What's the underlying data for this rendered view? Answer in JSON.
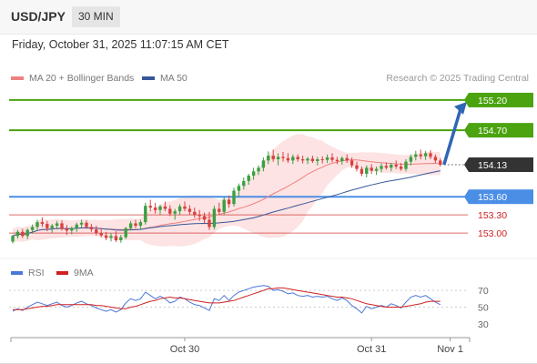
{
  "header": {
    "symbol": "USD/JPY",
    "timeframe": "30 MIN"
  },
  "datetime": "Friday, October 31, 2025 11:07:15 AM CET",
  "legend": {
    "ma_bb_label": "MA 20 + Bollinger Bands",
    "ma50_label": "MA 50",
    "copyright": "Research © 2025 Trading Central"
  },
  "colors": {
    "resistance": "#4aa30f",
    "support": "#4a8ee6",
    "target_low": "#cc2222",
    "bullish": "#3aa040",
    "bearish": "#d94040",
    "ma20": "#f08080",
    "ma50": "#36589a",
    "bands": "#fcd9d9",
    "price_badge": "#333333",
    "arrow": "#2f66b5"
  },
  "chart_data": [
    {
      "type": "candlestick",
      "instrument": "USD/JPY",
      "timeframe": "30 MIN",
      "ylim": [
        152.73,
        155.47
      ],
      "levels": [
        {
          "value": 155.2,
          "label": "155.20",
          "kind": "resistance"
        },
        {
          "value": 154.7,
          "label": "154.70",
          "kind": "resistance"
        },
        {
          "value": 154.13,
          "label": "154.13",
          "kind": "current"
        },
        {
          "value": 153.6,
          "label": "153.60",
          "kind": "pivot"
        },
        {
          "value": 153.3,
          "label": "153.30",
          "kind": "support"
        },
        {
          "value": 153.0,
          "label": "153.00",
          "kind": "support"
        }
      ],
      "x_labels": [
        "Oct 30",
        "Oct 31",
        "Nov 1"
      ],
      "x_label_index": [
        35,
        73,
        89
      ],
      "candles": [
        [
          152.86,
          152.97,
          152.83,
          152.95
        ],
        [
          152.95,
          153.05,
          152.91,
          153.02
        ],
        [
          153.02,
          153.07,
          152.92,
          152.95
        ],
        [
          152.95,
          153.08,
          152.9,
          153.05
        ],
        [
          153.05,
          153.14,
          152.99,
          153.1
        ],
        [
          153.1,
          153.22,
          153.05,
          153.18
        ],
        [
          153.18,
          153.26,
          153.1,
          153.15
        ],
        [
          153.15,
          153.2,
          153.03,
          153.08
        ],
        [
          153.08,
          153.15,
          153.0,
          153.12
        ],
        [
          153.12,
          153.2,
          153.06,
          153.16
        ],
        [
          153.16,
          153.21,
          153.04,
          153.07
        ],
        [
          153.07,
          153.13,
          152.97,
          153.04
        ],
        [
          153.04,
          153.11,
          152.98,
          153.08
        ],
        [
          153.08,
          153.17,
          153.02,
          153.14
        ],
        [
          153.14,
          153.22,
          153.09,
          153.17
        ],
        [
          153.17,
          153.21,
          153.07,
          153.1
        ],
        [
          153.1,
          153.15,
          153.02,
          153.06
        ],
        [
          153.06,
          153.12,
          152.96,
          153.0
        ],
        [
          153.0,
          153.08,
          152.93,
          152.96
        ],
        [
          152.96,
          153.02,
          152.88,
          152.92
        ],
        [
          152.92,
          153.0,
          152.86,
          152.95
        ],
        [
          152.95,
          153.03,
          152.85,
          152.88
        ],
        [
          152.88,
          152.97,
          152.84,
          152.93
        ],
        [
          152.93,
          153.1,
          152.9,
          153.08
        ],
        [
          153.08,
          153.2,
          153.04,
          153.16
        ],
        [
          153.16,
          153.22,
          153.08,
          153.12
        ],
        [
          153.12,
          153.22,
          153.06,
          153.18
        ],
        [
          153.18,
          153.5,
          153.14,
          153.45
        ],
        [
          153.45,
          153.55,
          153.36,
          153.42
        ],
        [
          153.42,
          153.5,
          153.32,
          153.38
        ],
        [
          153.38,
          153.47,
          153.3,
          153.44
        ],
        [
          153.44,
          153.52,
          153.36,
          153.4
        ],
        [
          153.4,
          153.46,
          153.28,
          153.32
        ],
        [
          153.32,
          153.4,
          153.22,
          153.36
        ],
        [
          153.36,
          153.48,
          153.3,
          153.44
        ],
        [
          153.44,
          153.52,
          153.36,
          153.4
        ],
        [
          153.4,
          153.46,
          153.3,
          153.35
        ],
        [
          153.35,
          153.42,
          153.25,
          153.3
        ],
        [
          153.3,
          153.38,
          153.2,
          153.28
        ],
        [
          153.28,
          153.34,
          153.16,
          153.22
        ],
        [
          153.22,
          153.35,
          153.05,
          153.1
        ],
        [
          153.1,
          153.45,
          153.06,
          153.4
        ],
        [
          153.4,
          153.5,
          153.3,
          153.35
        ],
        [
          153.35,
          153.6,
          153.3,
          153.55
        ],
        [
          153.55,
          153.62,
          153.42,
          153.48
        ],
        [
          153.48,
          153.75,
          153.44,
          153.7
        ],
        [
          153.7,
          153.82,
          153.6,
          153.78
        ],
        [
          153.78,
          153.92,
          153.72,
          153.86
        ],
        [
          153.86,
          153.98,
          153.8,
          153.95
        ],
        [
          153.95,
          154.08,
          153.88,
          154.02
        ],
        [
          154.02,
          154.12,
          153.96,
          154.08
        ],
        [
          154.08,
          154.25,
          154.02,
          154.2
        ],
        [
          154.2,
          154.35,
          154.14,
          154.28
        ],
        [
          154.28,
          154.38,
          154.18,
          154.22
        ],
        [
          154.22,
          154.32,
          154.12,
          154.26
        ],
        [
          154.26,
          154.34,
          154.18,
          154.24
        ],
        [
          154.24,
          154.32,
          154.16,
          154.2
        ],
        [
          154.2,
          154.3,
          154.14,
          154.26
        ],
        [
          154.26,
          154.3,
          154.18,
          154.22
        ],
        [
          154.22,
          154.28,
          154.15,
          154.2
        ],
        [
          154.2,
          154.26,
          154.14,
          154.23
        ],
        [
          154.23,
          154.28,
          154.16,
          154.19
        ],
        [
          154.19,
          154.26,
          154.12,
          154.22
        ],
        [
          154.22,
          154.27,
          154.15,
          154.21
        ],
        [
          154.21,
          154.3,
          154.16,
          154.25
        ],
        [
          154.25,
          154.32,
          154.17,
          154.21
        ],
        [
          154.21,
          154.26,
          154.14,
          154.19
        ],
        [
          154.19,
          154.27,
          154.13,
          154.24
        ],
        [
          154.24,
          154.3,
          154.16,
          154.2
        ],
        [
          154.2,
          154.25,
          154.08,
          154.12
        ],
        [
          154.12,
          154.18,
          154.02,
          154.06
        ],
        [
          154.06,
          154.1,
          153.94,
          153.98
        ],
        [
          153.98,
          154.12,
          153.92,
          154.08
        ],
        [
          154.08,
          154.14,
          153.98,
          154.03
        ],
        [
          154.03,
          154.1,
          153.96,
          154.06
        ],
        [
          154.06,
          154.15,
          154.0,
          154.11
        ],
        [
          154.11,
          154.17,
          154.05,
          154.08
        ],
        [
          154.08,
          154.16,
          154.02,
          154.13
        ],
        [
          154.13,
          154.2,
          154.06,
          154.1
        ],
        [
          154.1,
          154.16,
          154.03,
          154.06
        ],
        [
          154.06,
          154.22,
          154.02,
          154.18
        ],
        [
          154.18,
          154.3,
          154.12,
          154.26
        ],
        [
          154.26,
          154.36,
          154.2,
          154.3
        ],
        [
          154.3,
          154.38,
          154.22,
          154.27
        ],
        [
          154.27,
          154.36,
          154.21,
          154.32
        ],
        [
          154.32,
          154.37,
          154.22,
          154.26
        ],
        [
          154.26,
          154.3,
          154.16,
          154.2
        ],
        [
          154.2,
          154.24,
          154.1,
          154.13
        ]
      ],
      "projection": {
        "from": 154.13,
        "to": 155.2
      }
    },
    {
      "type": "line",
      "title": "",
      "ylim": [
        20,
        80
      ],
      "yticks": [
        70,
        50,
        30
      ],
      "series": [
        {
          "name": "RSI",
          "color": "#4a78d8",
          "values": [
            45,
            48,
            46,
            50,
            53,
            56,
            54,
            52,
            54,
            56,
            52,
            50,
            52,
            55,
            57,
            54,
            52,
            49,
            47,
            45,
            47,
            44,
            47,
            55,
            60,
            58,
            60,
            68,
            64,
            60,
            63,
            60,
            55,
            57,
            62,
            60,
            56,
            53,
            52,
            49,
            46,
            60,
            58,
            64,
            58,
            64,
            68,
            70,
            72,
            74,
            75,
            76,
            75,
            70,
            71,
            69,
            66,
            67,
            64,
            63,
            64,
            62,
            63,
            62,
            63,
            60,
            58,
            61,
            58,
            52,
            48,
            43,
            51,
            48,
            50,
            52,
            50,
            54,
            52,
            49,
            56,
            62,
            64,
            62,
            64,
            60,
            56,
            53
          ]
        },
        {
          "name": "9MA",
          "color": "#d02020",
          "values": [
            47,
            47,
            47,
            48,
            49,
            50,
            51,
            51,
            52,
            53,
            53,
            53,
            53,
            53,
            53,
            53,
            53,
            52,
            52,
            51,
            50,
            49,
            48,
            48,
            50,
            51,
            53,
            55,
            57,
            58,
            60,
            61,
            62,
            61,
            61,
            60,
            59,
            58,
            57,
            56,
            55,
            55,
            55,
            56,
            57,
            58,
            60,
            62,
            64,
            66,
            68,
            70,
            72,
            72,
            73,
            73,
            72,
            71,
            70,
            69,
            68,
            67,
            66,
            65,
            64,
            63,
            62,
            62,
            61,
            60,
            58,
            56,
            54,
            53,
            52,
            51,
            50,
            50,
            50,
            50,
            51,
            52,
            53,
            54,
            56,
            57,
            57,
            57
          ]
        }
      ]
    }
  ]
}
